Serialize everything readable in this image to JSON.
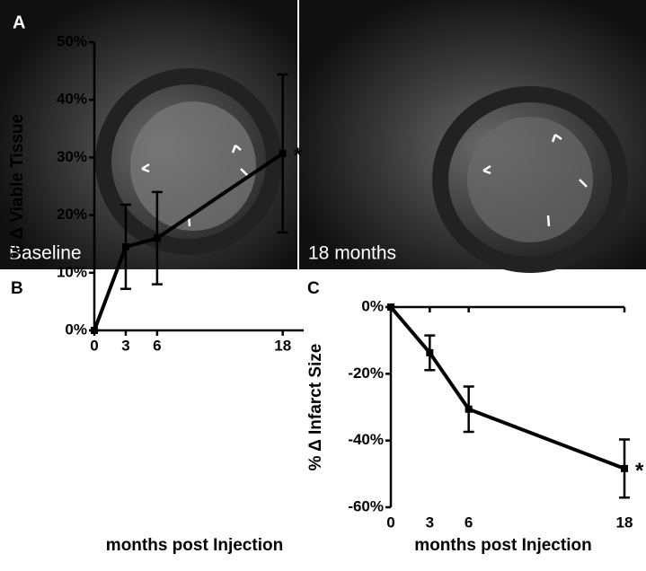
{
  "figure": {
    "panel_label": "A",
    "image_labels": [
      "Baseline",
      "18 months"
    ]
  },
  "chart_data": [
    {
      "type": "line",
      "panel_label": "B",
      "x_label": "months post Injection",
      "y_label": "% Δ Viable Tissue",
      "x": [
        0,
        3,
        6,
        18
      ],
      "values": [
        0,
        14.5,
        16,
        30.7
      ],
      "errors": [
        0,
        7.3,
        8,
        13.7
      ],
      "color": "#000000",
      "xlim": [
        0,
        20
      ],
      "xticks": [
        0,
        3,
        6,
        18
      ],
      "ylim": [
        0,
        50
      ],
      "yticks": [
        {
          "value": 0,
          "label": "0%"
        },
        {
          "value": 10,
          "label": "10%"
        },
        {
          "value": 20,
          "label": "20%"
        },
        {
          "value": 30,
          "label": "30%"
        },
        {
          "value": 40,
          "label": "40%"
        },
        {
          "value": 50,
          "label": "50%"
        }
      ],
      "annotation": "*"
    },
    {
      "type": "line",
      "panel_label": "C",
      "x_label": "months post Injection",
      "y_label": "% Δ  Infarct Size",
      "x": [
        0,
        3,
        6,
        18
      ],
      "values": [
        0,
        -13.7,
        -30.6,
        -48.4
      ],
      "errors": [
        0,
        5.2,
        6.8,
        8.7
      ],
      "color": "#000000",
      "xlim": [
        0,
        18
      ],
      "xticks": [
        0,
        3,
        6,
        18
      ],
      "ylim": [
        -60,
        0
      ],
      "yticks": [
        {
          "value": 0,
          "label": "0%"
        },
        {
          "value": -20,
          "label": "-20%"
        },
        {
          "value": -40,
          "label": "-40%"
        },
        {
          "value": -60,
          "label": "-60%"
        }
      ],
      "annotation": "*"
    }
  ]
}
